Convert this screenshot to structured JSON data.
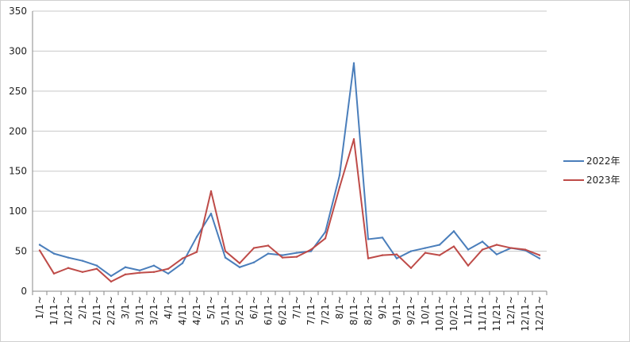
{
  "chart_data": {
    "type": "line",
    "title": "",
    "xlabel": "",
    "ylabel": "",
    "ylim": [
      0,
      350
    ],
    "yticks": [
      0,
      50,
      100,
      150,
      200,
      250,
      300,
      350
    ],
    "grid": "horizontal",
    "legend_position": "right",
    "categories": [
      "1/1~",
      "1/11~",
      "1/21~",
      "2/1~",
      "2/11~",
      "2/21~",
      "3/1~",
      "3/11~",
      "3/21~",
      "4/1~",
      "4/11~",
      "4/21~",
      "5/1~",
      "5/11~",
      "5/21~",
      "6/1~",
      "6/11~",
      "6/21~",
      "7/1~",
      "7/11~",
      "7/21~",
      "8/1~",
      "8/11~",
      "8/21~",
      "9/1~",
      "9/11~",
      "9/21~",
      "10/1~",
      "10/11~",
      "10/21~",
      "11/1~",
      "11/11~",
      "11/21~",
      "12/1~",
      "12/11~",
      "12/21~"
    ],
    "series": [
      {
        "name": "2022年",
        "color": "#4a7ebb",
        "values": [
          58,
          47,
          42,
          38,
          32,
          19,
          30,
          26,
          32,
          22,
          35,
          68,
          97,
          42,
          30,
          36,
          47,
          45,
          48,
          50,
          74,
          145,
          285,
          65,
          67,
          41,
          50,
          54,
          58,
          75,
          52,
          62,
          46,
          54,
          51,
          41
        ]
      },
      {
        "name": "2023年",
        "color": "#be4b48",
        "values": [
          51,
          22,
          29,
          24,
          28,
          12,
          21,
          23,
          24,
          28,
          41,
          49,
          125,
          50,
          35,
          54,
          57,
          42,
          43,
          52,
          66,
          130,
          190,
          41,
          45,
          46,
          29,
          48,
          45,
          56,
          32,
          52,
          58,
          54,
          52,
          45
        ]
      }
    ]
  }
}
